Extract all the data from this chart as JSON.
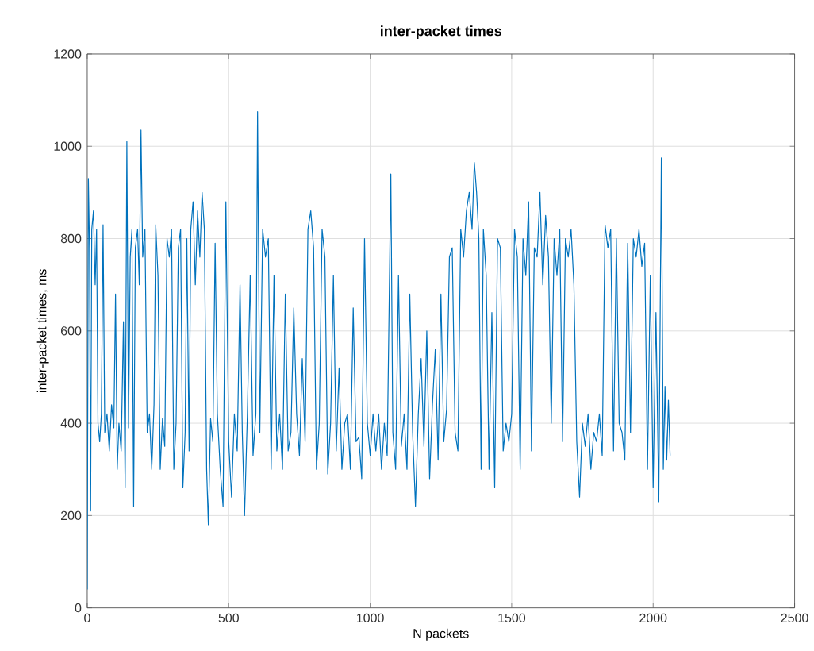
{
  "chart_data": {
    "type": "line",
    "title": "inter-packet times",
    "xlabel": "N packets",
    "ylabel": "inter-packet times, ms",
    "xlim": [
      0,
      2500
    ],
    "xticks": [
      0,
      500,
      1000,
      1500,
      2000,
      2500
    ],
    "ylim": [
      0,
      1200
    ],
    "yticks": [
      0,
      200,
      400,
      600,
      800,
      1000,
      1200
    ],
    "grid": true,
    "marker": "none",
    "line_style": "solid",
    "series": [
      {
        "color": "#0072bd",
        "x": [
          0,
          4,
          8,
          12,
          16,
          22,
          28,
          33,
          38,
          44,
          50,
          56,
          62,
          70,
          78,
          86,
          94,
          100,
          106,
          112,
          120,
          128,
          134,
          140,
          146,
          152,
          158,
          164,
          170,
          178,
          184,
          190,
          196,
          204,
          212,
          220,
          228,
          236,
          242,
          250,
          258,
          266,
          274,
          282,
          290,
          298,
          306,
          314,
          322,
          330,
          338,
          346,
          352,
          360,
          366,
          374,
          382,
          390,
          398,
          406,
          414,
          422,
          428,
          436,
          444,
          452,
          460,
          470,
          480,
          490,
          500,
          510,
          520,
          530,
          540,
          548,
          556,
          566,
          576,
          586,
          596,
          602,
          610,
          620,
          630,
          640,
          650,
          660,
          670,
          680,
          690,
          700,
          710,
          720,
          730,
          740,
          750,
          760,
          770,
          780,
          790,
          800,
          810,
          820,
          830,
          840,
          850,
          860,
          870,
          880,
          890,
          900,
          910,
          920,
          930,
          940,
          950,
          960,
          970,
          980,
          990,
          1000,
          1010,
          1020,
          1030,
          1040,
          1050,
          1060,
          1073,
          1080,
          1090,
          1100,
          1110,
          1120,
          1130,
          1140,
          1150,
          1160,
          1170,
          1180,
          1190,
          1200,
          1210,
          1220,
          1230,
          1240,
          1250,
          1260,
          1270,
          1280,
          1290,
          1300,
          1310,
          1320,
          1330,
          1340,
          1350,
          1360,
          1368,
          1376,
          1384,
          1392,
          1400,
          1410,
          1420,
          1430,
          1440,
          1450,
          1460,
          1470,
          1480,
          1490,
          1500,
          1510,
          1520,
          1530,
          1540,
          1550,
          1560,
          1570,
          1580,
          1590,
          1600,
          1610,
          1620,
          1630,
          1640,
          1650,
          1660,
          1670,
          1680,
          1690,
          1700,
          1710,
          1720,
          1730,
          1740,
          1750,
          1760,
          1770,
          1780,
          1790,
          1800,
          1810,
          1820,
          1830,
          1840,
          1850,
          1860,
          1870,
          1880,
          1890,
          1900,
          1910,
          1920,
          1930,
          1940,
          1950,
          1960,
          1970,
          1980,
          1990,
          2000,
          2010,
          2020,
          2029,
          2036,
          2042,
          2048,
          2054,
          2060
        ],
        "values": [
          40,
          930,
          780,
          210,
          820,
          860,
          700,
          820,
          400,
          360,
          420,
          830,
          380,
          420,
          340,
          440,
          390,
          680,
          300,
          400,
          340,
          620,
          260,
          1010,
          390,
          760,
          820,
          220,
          780,
          820,
          700,
          1035,
          760,
          820,
          380,
          420,
          300,
          440,
          830,
          720,
          300,
          410,
          350,
          800,
          760,
          820,
          300,
          400,
          780,
          820,
          260,
          380,
          800,
          340,
          820,
          880,
          700,
          860,
          760,
          900,
          820,
          300,
          180,
          410,
          360,
          790,
          420,
          300,
          220,
          880,
          360,
          240,
          420,
          340,
          700,
          380,
          200,
          420,
          720,
          330,
          420,
          1075,
          380,
          820,
          760,
          800,
          300,
          720,
          340,
          420,
          300,
          680,
          340,
          380,
          650,
          420,
          330,
          540,
          360,
          820,
          860,
          780,
          300,
          400,
          820,
          760,
          290,
          400,
          720,
          340,
          520,
          300,
          400,
          420,
          300,
          650,
          360,
          370,
          280,
          800,
          400,
          330,
          420,
          340,
          420,
          300,
          400,
          330,
          940,
          380,
          300,
          720,
          350,
          420,
          300,
          680,
          380,
          220,
          420,
          540,
          350,
          600,
          280,
          440,
          560,
          320,
          680,
          360,
          430,
          760,
          780,
          380,
          340,
          820,
          760,
          860,
          900,
          820,
          965,
          900,
          800,
          300,
          820,
          720,
          300,
          640,
          260,
          800,
          780,
          340,
          400,
          360,
          420,
          820,
          760,
          300,
          800,
          720,
          880,
          340,
          780,
          760,
          900,
          700,
          850,
          760,
          400,
          800,
          720,
          820,
          360,
          800,
          760,
          820,
          700,
          360,
          240,
          400,
          350,
          420,
          300,
          380,
          360,
          420,
          330,
          830,
          780,
          820,
          340,
          800,
          400,
          380,
          320,
          790,
          380,
          800,
          760,
          820,
          740,
          790,
          300,
          720,
          260,
          640,
          230,
          975,
          300,
          480,
          320,
          450,
          330
        ]
      }
    ]
  }
}
